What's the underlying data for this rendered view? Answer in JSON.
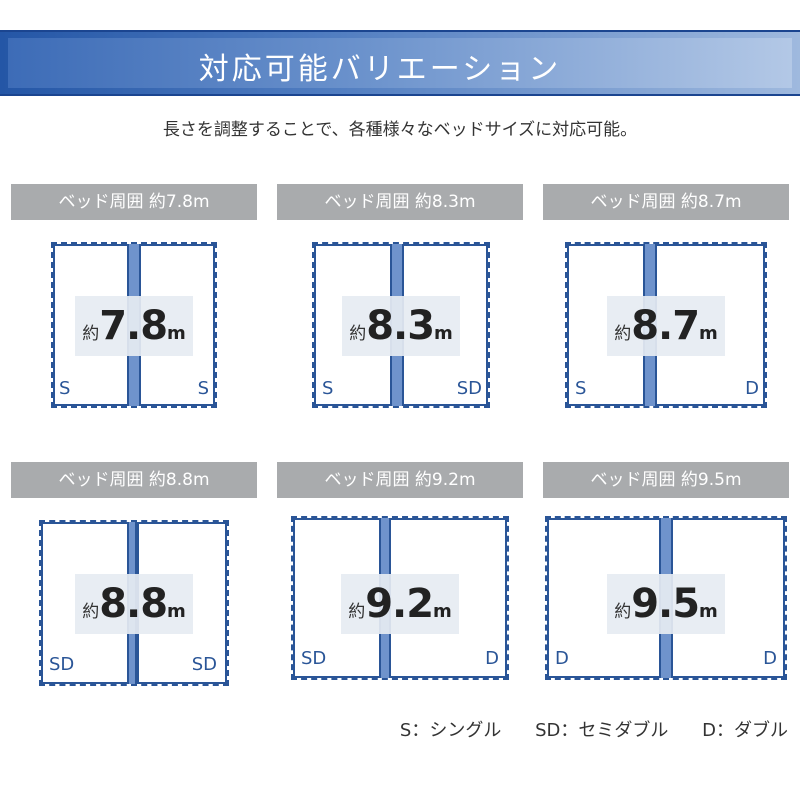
{
  "banner": {
    "title": "対応可能バリエーション"
  },
  "subtitle": "長さを調整することで、各種様々なベッドサイズに対応可能。",
  "cards": [
    {
      "header": "ベッド周囲 約7.8m",
      "prefix": "約",
      "value": "7.8",
      "unit": "m",
      "left": "S",
      "right": "S"
    },
    {
      "header": "ベッド周囲 約8.3m",
      "prefix": "約",
      "value": "8.3",
      "unit": "m",
      "left": "S",
      "right": "SD"
    },
    {
      "header": "ベッド周囲 約8.7m",
      "prefix": "約",
      "value": "8.7",
      "unit": "m",
      "left": "S",
      "right": "D"
    },
    {
      "header": "ベッド周囲 約8.8m",
      "prefix": "約",
      "value": "8.8",
      "unit": "m",
      "left": "SD",
      "right": "SD"
    },
    {
      "header": "ベッド周囲 約9.2m",
      "prefix": "約",
      "value": "9.2",
      "unit": "m",
      "left": "SD",
      "right": "D"
    },
    {
      "header": "ベッド周囲 約9.5m",
      "prefix": "約",
      "value": "9.5",
      "unit": "m",
      "left": "D",
      "right": "D"
    }
  ],
  "legend": {
    "s": "S：シングル",
    "sd": "SD：セミダブル",
    "d": "D：ダブル"
  },
  "colors": {
    "accent": "#2a5597",
    "header_bg": "#a9abad",
    "divider": "#6f93cc"
  }
}
